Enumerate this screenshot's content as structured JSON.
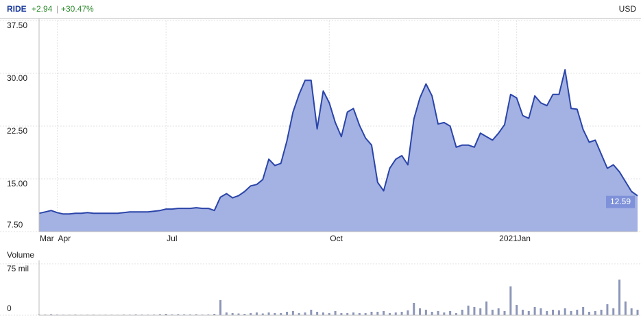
{
  "header": {
    "symbol": "RIDE",
    "change": "+2.94",
    "change_percent": "+30.47%",
    "currency": "USD"
  },
  "chart_data": [
    {
      "type": "area",
      "categories": [
        "Mar",
        null,
        null,
        "Apr",
        null,
        null,
        null,
        null,
        null,
        null,
        null,
        null,
        null,
        null,
        null,
        null,
        null,
        null,
        null,
        null,
        null,
        "Jul",
        null,
        null,
        null,
        null,
        null,
        null,
        null,
        null,
        null,
        null,
        null,
        null,
        null,
        null,
        null,
        null,
        null,
        null,
        null,
        null,
        null,
        null,
        null,
        null,
        null,
        null,
        "Oct",
        null,
        null,
        null,
        null,
        null,
        null,
        null,
        null,
        null,
        null,
        null,
        null,
        null,
        null,
        null,
        null,
        null,
        null,
        null,
        null,
        null,
        null,
        null,
        null,
        null,
        null,
        null,
        "2021",
        null,
        null,
        "Jan",
        null,
        null,
        null,
        null,
        null,
        null,
        null,
        null,
        null,
        null,
        null,
        null,
        null,
        null,
        null,
        null,
        null,
        null,
        null,
        null
      ],
      "values": [
        10.1,
        10.3,
        10.5,
        10.2,
        10.0,
        10.0,
        10.1,
        10.1,
        10.2,
        10.1,
        10.1,
        10.1,
        10.1,
        10.1,
        10.2,
        10.3,
        10.3,
        10.3,
        10.3,
        10.4,
        10.5,
        10.7,
        10.7,
        10.8,
        10.8,
        10.8,
        10.9,
        10.8,
        10.8,
        10.5,
        12.4,
        12.9,
        12.3,
        12.6,
        13.2,
        14.0,
        14.2,
        14.9,
        17.8,
        16.9,
        17.2,
        20.4,
        24.5,
        27.0,
        29.0,
        29.0,
        22.1,
        27.5,
        25.8,
        23.0,
        21.0,
        24.5,
        25.0,
        22.6,
        20.8,
        19.8,
        14.5,
        13.3,
        16.5,
        17.8,
        18.3,
        17.0,
        23.5,
        26.5,
        28.5,
        26.8,
        22.8,
        23.0,
        22.5,
        19.5,
        19.8,
        19.8,
        19.5,
        21.5,
        21.0,
        20.5,
        21.5,
        22.7,
        27.0,
        26.5,
        24.0,
        23.6,
        26.8,
        25.8,
        25.4,
        27.0,
        27.0,
        30.5,
        25.0,
        24.9,
        22.0,
        20.2,
        20.5,
        18.5,
        16.5,
        17.0,
        16.0,
        14.6,
        13.2,
        12.59
      ],
      "color": "#2a44a8",
      "fill_color": "#a3b1e3",
      "ylim": [
        7.5,
        37.5
      ],
      "yticks": [
        {
          "value": 7.5,
          "label": "7.50"
        },
        {
          "value": 15,
          "label": "15.00"
        },
        {
          "value": 22.5,
          "label": "22.50"
        },
        {
          "value": 30,
          "label": "30.00"
        },
        {
          "value": 37.5,
          "label": "37.50"
        }
      ],
      "grid": true
    },
    {
      "type": "bar",
      "title": "Volume",
      "values": [
        1,
        1,
        1.5,
        1,
        0.8,
        0.8,
        1,
        0.7,
        0.8,
        0.9,
        0.7,
        0.8,
        0.8,
        0.7,
        1,
        0.9,
        1.2,
        1,
        0.9,
        1,
        1.5,
        2,
        1.2,
        1.5,
        1.3,
        1.2,
        1.4,
        1,
        1.2,
        2,
        22,
        4,
        3,
        2.5,
        2,
        3,
        4,
        2.5,
        4,
        3,
        3,
        5,
        6,
        3,
        4,
        8,
        5,
        4,
        3,
        6,
        3,
        3,
        4,
        3,
        3,
        5,
        5,
        6,
        3,
        4,
        5,
        7,
        18,
        10,
        8,
        5,
        6,
        4,
        6,
        3,
        8,
        14,
        12,
        10,
        20,
        8,
        10,
        6,
        42,
        15,
        8,
        6,
        12,
        10,
        6,
        8,
        7,
        10,
        6,
        8,
        12,
        5,
        6,
        8,
        16,
        10,
        52,
        20,
        10,
        8
      ],
      "color": "#8c96b8",
      "ylim": [
        0,
        75
      ],
      "yticks": [
        0,
        {
          "value": 75,
          "label": "75 mil"
        }
      ],
      "grid": true
    }
  ]
}
